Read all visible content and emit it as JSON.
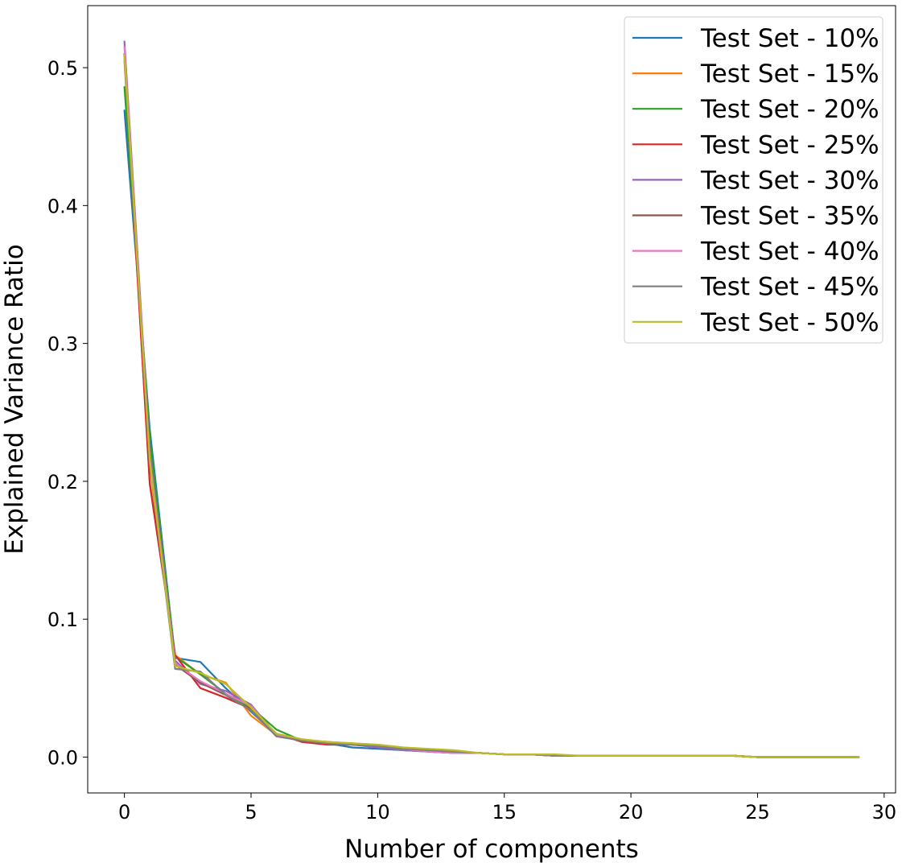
{
  "chart_data": {
    "type": "line",
    "title": "",
    "xlabel": "Number of components",
    "ylabel": "Explained Variance Ratio",
    "xlim": [
      -1.45,
      30.45
    ],
    "ylim": [
      -0.026,
      0.545
    ],
    "xticks": [
      0,
      5,
      10,
      15,
      20,
      25,
      30
    ],
    "xtick_labels": [
      "0",
      "5",
      "10",
      "15",
      "20",
      "25",
      "30"
    ],
    "yticks": [
      0.0,
      0.1,
      0.2,
      0.3,
      0.4,
      0.5
    ],
    "ytick_labels": [
      "0.0",
      "0.1",
      "0.2",
      "0.3",
      "0.4",
      "0.5"
    ],
    "grid": false,
    "legend_position": "top-right",
    "x": [
      0,
      1,
      2,
      3,
      4,
      5,
      6,
      7,
      8,
      9,
      10,
      11,
      12,
      13,
      14,
      15,
      16,
      17,
      18,
      19,
      20,
      21,
      22,
      23,
      24,
      25,
      26,
      27,
      28,
      29
    ],
    "series": [
      {
        "name": "Test Set - 10%",
        "color": "#1f77b4",
        "values": [
          0.469,
          0.238,
          0.072,
          0.069,
          0.05,
          0.033,
          0.016,
          0.012,
          0.01,
          0.007,
          0.006,
          0.005,
          0.004,
          0.003,
          0.003,
          0.002,
          0.002,
          0.001,
          0.001,
          0.001,
          0.001,
          0.001,
          0.001,
          0.001,
          0.001,
          0.0,
          0.0,
          0.0,
          0.0,
          0.0
        ]
      },
      {
        "name": "Test Set - 15%",
        "color": "#ff7f0e",
        "values": [
          0.505,
          0.2,
          0.074,
          0.06,
          0.054,
          0.03,
          0.016,
          0.012,
          0.011,
          0.01,
          0.009,
          0.007,
          0.005,
          0.004,
          0.003,
          0.002,
          0.002,
          0.001,
          0.001,
          0.001,
          0.001,
          0.001,
          0.001,
          0.001,
          0.001,
          0.0,
          0.0,
          0.0,
          0.0,
          0.0
        ]
      },
      {
        "name": "Test Set - 20%",
        "color": "#2ca02c",
        "values": [
          0.486,
          0.232,
          0.073,
          0.06,
          0.046,
          0.036,
          0.02,
          0.012,
          0.011,
          0.009,
          0.008,
          0.006,
          0.005,
          0.004,
          0.003,
          0.002,
          0.002,
          0.001,
          0.001,
          0.001,
          0.001,
          0.001,
          0.001,
          0.001,
          0.001,
          0.0,
          0.0,
          0.0,
          0.0,
          0.0
        ]
      },
      {
        "name": "Test Set - 25%",
        "color": "#d62728",
        "values": [
          0.51,
          0.198,
          0.074,
          0.05,
          0.043,
          0.035,
          0.017,
          0.011,
          0.009,
          0.009,
          0.008,
          0.006,
          0.004,
          0.003,
          0.003,
          0.002,
          0.002,
          0.001,
          0.001,
          0.001,
          0.001,
          0.001,
          0.001,
          0.001,
          0.001,
          0.0,
          0.0,
          0.0,
          0.0,
          0.0
        ]
      },
      {
        "name": "Test Set - 30%",
        "color": "#9467bd",
        "values": [
          0.519,
          0.221,
          0.07,
          0.053,
          0.048,
          0.038,
          0.016,
          0.012,
          0.01,
          0.009,
          0.007,
          0.005,
          0.004,
          0.003,
          0.003,
          0.002,
          0.002,
          0.001,
          0.001,
          0.001,
          0.001,
          0.001,
          0.001,
          0.001,
          0.001,
          0.0,
          0.0,
          0.0,
          0.0,
          0.0
        ]
      },
      {
        "name": "Test Set - 35%",
        "color": "#8c564b",
        "values": [
          0.51,
          0.214,
          0.067,
          0.054,
          0.045,
          0.034,
          0.016,
          0.012,
          0.011,
          0.009,
          0.008,
          0.006,
          0.005,
          0.004,
          0.003,
          0.002,
          0.002,
          0.001,
          0.001,
          0.001,
          0.001,
          0.001,
          0.001,
          0.001,
          0.001,
          0.0,
          0.0,
          0.0,
          0.0,
          0.0
        ]
      },
      {
        "name": "Test Set - 40%",
        "color": "#e377c2",
        "values": [
          0.515,
          0.216,
          0.068,
          0.055,
          0.046,
          0.037,
          0.016,
          0.012,
          0.01,
          0.009,
          0.008,
          0.006,
          0.004,
          0.003,
          0.003,
          0.002,
          0.002,
          0.001,
          0.001,
          0.001,
          0.001,
          0.001,
          0.001,
          0.001,
          0.001,
          0.0,
          0.0,
          0.0,
          0.0,
          0.0
        ]
      },
      {
        "name": "Test Set - 45%",
        "color": "#7f7f7f",
        "values": [
          0.507,
          0.213,
          0.064,
          0.062,
          0.045,
          0.034,
          0.015,
          0.012,
          0.01,
          0.009,
          0.008,
          0.006,
          0.005,
          0.004,
          0.003,
          0.002,
          0.002,
          0.001,
          0.001,
          0.001,
          0.001,
          0.001,
          0.001,
          0.001,
          0.001,
          0.0,
          0.0,
          0.0,
          0.0,
          0.0
        ]
      },
      {
        "name": "Test Set - 50%",
        "color": "#bcbd22",
        "values": [
          0.509,
          0.215,
          0.066,
          0.061,
          0.053,
          0.036,
          0.017,
          0.013,
          0.011,
          0.01,
          0.009,
          0.007,
          0.006,
          0.005,
          0.003,
          0.002,
          0.002,
          0.002,
          0.001,
          0.001,
          0.001,
          0.001,
          0.001,
          0.001,
          0.001,
          0.0,
          0.0,
          0.0,
          0.0,
          0.0
        ]
      }
    ]
  }
}
